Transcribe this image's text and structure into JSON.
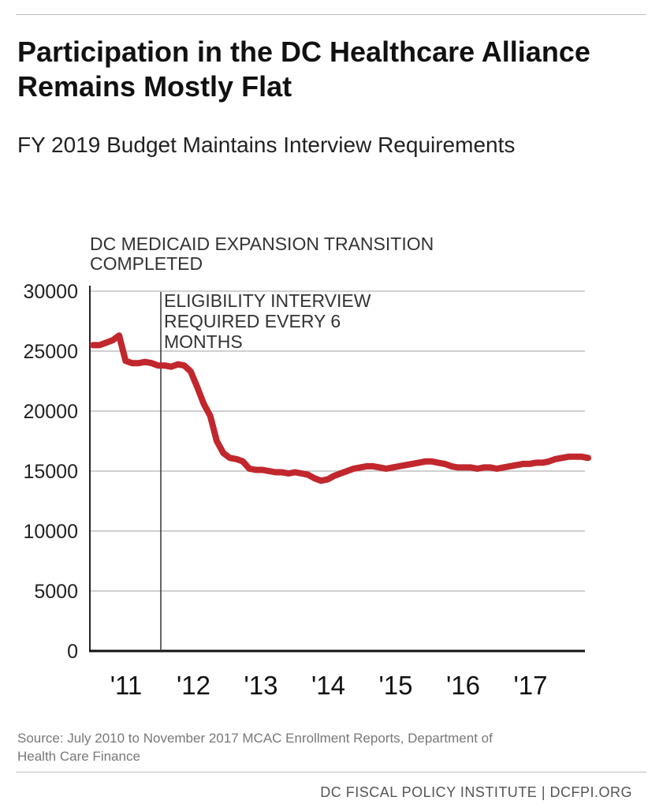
{
  "header": {
    "title_line1": "Participation in the DC Healthcare Alliance",
    "title_line2": "Remains Mostly Flat",
    "subtitle": "FY 2019 Budget Maintains Interview Requirements"
  },
  "chart_data": {
    "type": "line",
    "title": "Participation in the DC Healthcare Alliance Remains Mostly Flat",
    "subtitle": "FY 2019 Budget Maintains Interview Requirements",
    "xlabel": "",
    "ylabel": "",
    "ylim": [
      0,
      30000
    ],
    "yticks": [
      0,
      5000,
      10000,
      15000,
      20000,
      25000,
      30000
    ],
    "ytick_labels": [
      "0",
      "5000",
      "10000",
      "15000",
      "20000",
      "25000",
      "30000"
    ],
    "xtick_labels": [
      "'11",
      "'12",
      "'13",
      "'14",
      "'15",
      "'16",
      "'17"
    ],
    "grid": true,
    "line_color": "#c1272d",
    "annotations": [
      {
        "text_line1": "DC MEDICAID EXPANSION TRANSITION",
        "text_line2": "COMPLETED"
      },
      {
        "text_line1": "ELIGIBILITY INTERVIEW",
        "text_line2": "REQUIRED EVERY 6",
        "text_line3": "MONTHS"
      }
    ],
    "series": [
      {
        "values": [
          25500,
          25500,
          25700,
          25900,
          26300,
          24200,
          24000,
          24000,
          24100,
          24000,
          23800,
          23800,
          23700,
          23900,
          23800,
          23300,
          22000,
          20600,
          19600,
          17500,
          16500,
          16100,
          16000,
          15800,
          15200,
          15100,
          15100,
          15000,
          14900,
          14900,
          14800,
          14900,
          14800,
          14700,
          14400,
          14200,
          14300,
          14600,
          14800,
          15000,
          15200,
          15300,
          15400,
          15400,
          15300,
          15200,
          15300,
          15400,
          15500,
          15600,
          15700,
          15800,
          15800,
          15700,
          15600,
          15400,
          15300,
          15300,
          15300,
          15200,
          15300,
          15300,
          15200,
          15300,
          15400,
          15500,
          15600,
          15600,
          15700,
          15700,
          15800,
          16000,
          16100,
          16200,
          16200,
          16200,
          16100
        ]
      }
    ]
  },
  "source_line1": "Source: July 2010 to November 2017 MCAC Enrollment Reports, Department of",
  "source_line2": "Health Care Finance",
  "footer": "DC FISCAL POLICY INSTITUTE | DCFPI.ORG"
}
